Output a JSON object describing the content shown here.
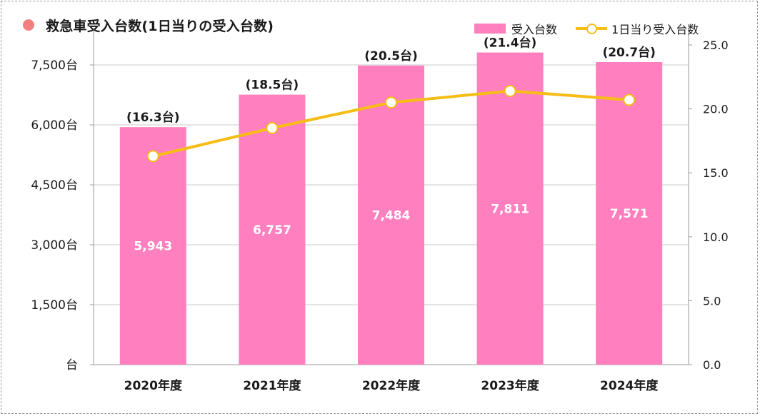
{
  "chart_data": {
    "type": "bar+line",
    "title": "救急車受入台数(1日当りの受入台数)",
    "categories": [
      "2020年度",
      "2021年度",
      "2022年度",
      "2023年度",
      "2024年度"
    ],
    "series": [
      {
        "name": "受入台数",
        "type": "bar",
        "axis": "left",
        "color": "#ff7fbf",
        "values": [
          5943,
          6757,
          7484,
          7811,
          7571
        ],
        "labels": [
          "5,943",
          "6,757",
          "7,484",
          "7,811",
          "7,571"
        ]
      },
      {
        "name": "1日当り受入台数",
        "type": "line",
        "axis": "right",
        "color": "#f5bd16",
        "values": [
          16.3,
          18.5,
          20.5,
          21.4,
          20.7
        ],
        "labels": [
          "(16.3台)",
          "(18.5台)",
          "(20.5台)",
          "(21.4台)",
          "(20.7台)"
        ]
      }
    ],
    "y_left": {
      "min": 0,
      "max": 8000,
      "ticks": [
        0,
        1500,
        3000,
        4500,
        6000,
        7500
      ],
      "tick_labels": [
        "台",
        "1,500台",
        "3,000台",
        "4,500台",
        "6,000台",
        "7,500台"
      ]
    },
    "y_right": {
      "min": 0,
      "max": 25,
      "ticks": [
        0,
        5,
        10,
        15,
        20,
        25
      ],
      "tick_labels": [
        "0.0",
        "5.0",
        "10.0",
        "15.0",
        "20.0",
        "25.0"
      ]
    },
    "grid": true,
    "legend": "top-right"
  }
}
